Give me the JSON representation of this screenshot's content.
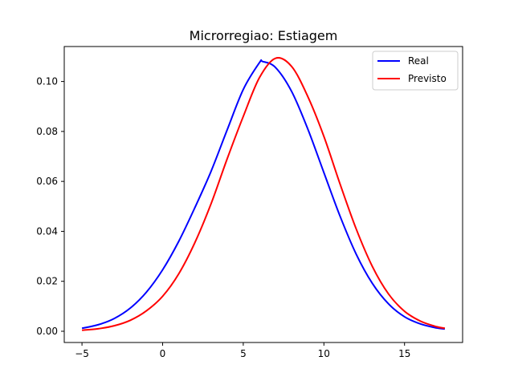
{
  "chart_data": {
    "type": "line",
    "title": "Microrregiao: Estiagem",
    "xlabel": "",
    "ylabel": "",
    "xlim": [
      -6.1,
      18.6
    ],
    "ylim": [
      -0.0045,
      0.114
    ],
    "x_ticks": [
      -5,
      0,
      5,
      10,
      15
    ],
    "x_tick_labels": [
      "−5",
      "0",
      "5",
      "10",
      "15"
    ],
    "y_ticks": [
      0.0,
      0.02,
      0.04,
      0.06,
      0.08,
      0.1
    ],
    "y_tick_labels": [
      "0.00",
      "0.02",
      "0.04",
      "0.06",
      "0.08",
      "0.10"
    ],
    "grid": false,
    "legend_position": "top-right",
    "series": [
      {
        "name": "Real",
        "color": "#0000ff",
        "x": [
          -5,
          -4,
          -3,
          -2,
          -1,
          0,
          1,
          2,
          3,
          4,
          5,
          6,
          6.2,
          7,
          8,
          9,
          10,
          11,
          12,
          13,
          14,
          15,
          16,
          17,
          17.5
        ],
        "y": [
          0.0012,
          0.0026,
          0.0051,
          0.0093,
          0.0157,
          0.0246,
          0.036,
          0.0495,
          0.064,
          0.0806,
          0.0968,
          0.1075,
          0.108,
          0.1056,
          0.096,
          0.081,
          0.0635,
          0.0461,
          0.0309,
          0.0192,
          0.011,
          0.0058,
          0.0029,
          0.0013,
          0.0009
        ]
      },
      {
        "name": "Previsto",
        "color": "#ff0000",
        "x": [
          -5,
          -4,
          -3,
          -2,
          -1,
          0,
          1,
          2,
          3,
          4,
          5,
          6,
          7,
          8,
          9,
          10,
          11,
          12,
          13,
          14,
          15,
          16,
          17,
          17.5
        ],
        "y": [
          0.0004,
          0.001,
          0.0022,
          0.0044,
          0.0082,
          0.014,
          0.023,
          0.0355,
          0.051,
          0.069,
          0.086,
          0.1015,
          0.1093,
          0.106,
          0.094,
          0.078,
          0.059,
          0.041,
          0.026,
          0.015,
          0.008,
          0.004,
          0.0018,
          0.0012
        ]
      }
    ]
  }
}
